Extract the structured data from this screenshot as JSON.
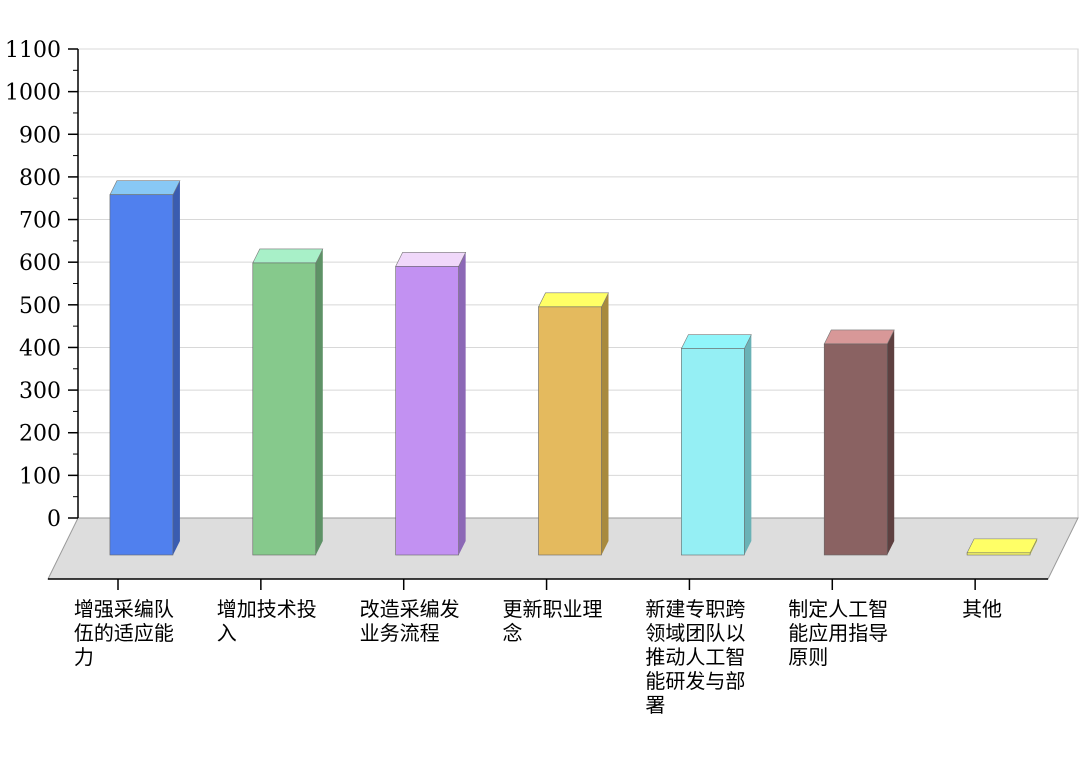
{
  "chart_data": {
    "type": "bar",
    "title": "",
    "xlabel": "",
    "ylabel": "",
    "ylim": [
      0,
      1100
    ],
    "yticks": [
      0,
      100,
      200,
      300,
      400,
      500,
      600,
      700,
      800,
      900,
      1000,
      1100
    ],
    "grid": true,
    "categories": [
      "增强采编队伍的适应能力",
      "增加技术投入",
      "改造采编发业务流程",
      "更新职业理念",
      "新建专职跨领域团队以推动人工智能研发与部署",
      "制定人工智能应用指导原则",
      "其他"
    ],
    "values": [
      845,
      685,
      677,
      582,
      484,
      495,
      5
    ],
    "colors": [
      "#5080EE",
      "#86C98C",
      "#C291F2",
      "#E4BA5E",
      "#95EFF4",
      "#8A6262",
      "#FFFF66"
    ],
    "top_colors": [
      "#88C8F5",
      "#A8F0C8",
      "#F0D8FA",
      "#FFFF66",
      "#90F5FA",
      "#D89898",
      "#FFFF66"
    ],
    "side_colors": [
      "#3A5CB0",
      "#5E9266",
      "#8C68B6",
      "#A88A3E",
      "#6AB2B6",
      "#5E4040",
      "#BDBD40"
    ]
  }
}
